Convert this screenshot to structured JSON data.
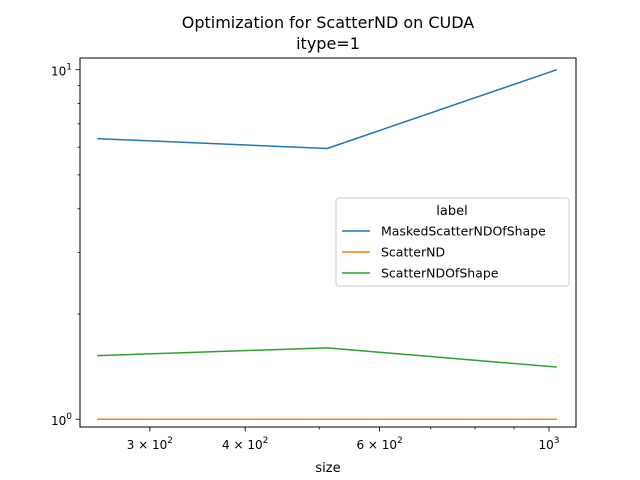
{
  "chart_data": {
    "type": "line",
    "title": "Optimization for ScatterND on CUDA",
    "subtitle": "itype=1",
    "xlabel": "size",
    "ylabel": "",
    "xscale": "log",
    "yscale": "log",
    "xlim": [
      243,
      1085
    ],
    "ylim": [
      0.95,
      10.8
    ],
    "x": [
      256,
      512,
      1024
    ],
    "x_ticks": [
      {
        "value": 300,
        "base": "3 × 10",
        "exp": "2"
      },
      {
        "value": 400,
        "base": "4 × 10",
        "exp": "2"
      },
      {
        "value": 600,
        "base": "6 × 10",
        "exp": "2"
      },
      {
        "value": 1000,
        "base": "10",
        "exp": "3"
      }
    ],
    "y_ticks": [
      {
        "value": 1,
        "base": "10",
        "exp": "0"
      },
      {
        "value": 10,
        "base": "10",
        "exp": "1"
      }
    ],
    "grid": false,
    "legend": {
      "title": "label",
      "placement": "center-right"
    },
    "series": [
      {
        "name": "MaskedScatterNDOfShape",
        "color": "#1f77b4",
        "values": [
          6.35,
          5.95,
          10.0
        ]
      },
      {
        "name": "ScatterND",
        "color": "#ff7f0e",
        "values": [
          1.0,
          1.0,
          1.0
        ]
      },
      {
        "name": "ScatterNDOfShape",
        "color": "#2ca02c",
        "values": [
          1.52,
          1.6,
          1.41
        ]
      }
    ]
  }
}
